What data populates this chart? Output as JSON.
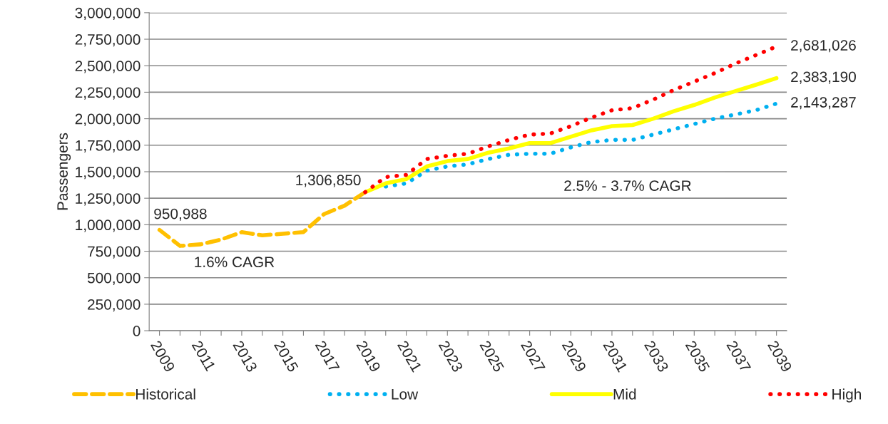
{
  "chart_data": {
    "type": "line",
    "ylabel": "Passengers",
    "categories": [
      "2009",
      null,
      "2011",
      null,
      "2013",
      null,
      "2015",
      null,
      "2017",
      null,
      "2019",
      null,
      "2021",
      null,
      "2023",
      null,
      "2025",
      null,
      "2027",
      null,
      "2029",
      null,
      "2031",
      null,
      "2033",
      null,
      "2035",
      null,
      "2037",
      null,
      "2039"
    ],
    "series": [
      {
        "name": "Historical",
        "color": "#ffc000",
        "line_style": "dashed",
        "values": [
          950988,
          800000,
          815000,
          860000,
          930000,
          900000,
          915000,
          930000,
          1100000,
          1180000,
          1306850,
          null,
          null,
          null,
          null,
          null,
          null,
          null,
          null,
          null,
          null,
          null,
          null,
          null,
          null,
          null,
          null,
          null,
          null,
          null,
          null
        ]
      },
      {
        "name": "Low",
        "color": "#00b0f0",
        "line_style": "dotted",
        "values": [
          null,
          null,
          null,
          null,
          null,
          null,
          null,
          null,
          null,
          null,
          null,
          1360000,
          1390000,
          1510000,
          1550000,
          1570000,
          1620000,
          1660000,
          1670000,
          1670000,
          1730000,
          1780000,
          1800000,
          1800000,
          1850000,
          1900000,
          1950000,
          2000000,
          2040000,
          2080000,
          2143287
        ]
      },
      {
        "name": "Mid",
        "color": "#ffff00",
        "line_style": "solid",
        "values": [
          null,
          null,
          null,
          null,
          null,
          null,
          null,
          null,
          null,
          null,
          1306850,
          1390000,
          1430000,
          1550000,
          1600000,
          1620000,
          1680000,
          1720000,
          1770000,
          1770000,
          1830000,
          1890000,
          1930000,
          1940000,
          2000000,
          2070000,
          2130000,
          2200000,
          2260000,
          2320000,
          2383190
        ]
      },
      {
        "name": "High",
        "color": "#ff0000",
        "line_style": "dotted",
        "values": [
          null,
          null,
          null,
          null,
          null,
          null,
          null,
          null,
          null,
          null,
          1306850,
          1450000,
          1470000,
          1620000,
          1650000,
          1670000,
          1740000,
          1800000,
          1850000,
          1860000,
          1930000,
          2010000,
          2080000,
          2100000,
          2180000,
          2270000,
          2350000,
          2430000,
          2520000,
          2600000,
          2681026
        ]
      }
    ],
    "ylim": [
      0,
      3000000
    ],
    "yticks": [
      0,
      {
        "value": 250000,
        "label": "250,000"
      },
      {
        "value": 500000,
        "label": "500,000"
      },
      {
        "value": 750000,
        "label": "750,000"
      },
      {
        "value": 1000000,
        "label": "1,000,000"
      },
      {
        "value": 1250000,
        "label": "1,250,000"
      },
      {
        "value": 1500000,
        "label": "1,500,000"
      },
      {
        "value": 1750000,
        "label": "1,750,000"
      },
      {
        "value": 2000000,
        "label": "2,000,000"
      },
      {
        "value": 2250000,
        "label": "2,250,000"
      },
      {
        "value": 2500000,
        "label": "2,500,000"
      },
      {
        "value": 2750000,
        "label": "2,750,000"
      },
      {
        "value": 3000000,
        "label": "3,000,000"
      }
    ],
    "annotations": [
      {
        "text": "950,988",
        "x": "2009",
        "y": 950988
      },
      {
        "text": "1,306,850",
        "x": "2019",
        "y": 1306850
      },
      {
        "text": "2,681,026",
        "x": "2039",
        "y": 2681026
      },
      {
        "text": "2,383,190",
        "x": "2039",
        "y": 2383190
      },
      {
        "text": "2,143,287",
        "x": "2039",
        "y": 2143287
      },
      "1.6% CAGR",
      "2.5% - 3.7% CAGR"
    ],
    "grid": "y",
    "legend": "bottom"
  }
}
